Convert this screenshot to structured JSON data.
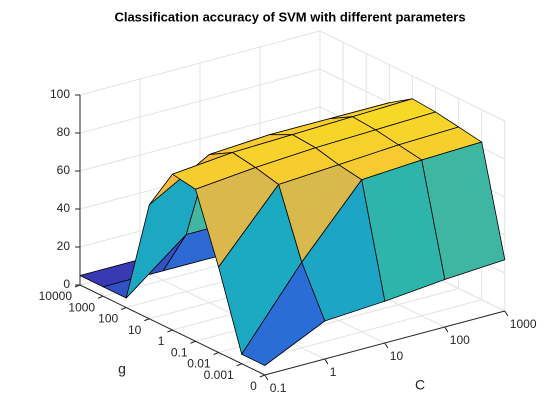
{
  "chart_data": {
    "type": "surface",
    "title": "Classification accuracy of SVM with different parameters",
    "xlabel": "C",
    "ylabel": "g",
    "xcategories": [
      "0.1",
      "1",
      "10",
      "100",
      "1000"
    ],
    "ycategories": [
      "0",
      "0.001",
      "0.01",
      "0.1",
      "1",
      "10",
      "100",
      "1000",
      "10000"
    ],
    "z": [
      [
        5,
        20,
        22,
        25,
        27
      ],
      [
        5,
        45,
        80,
        82,
        83
      ],
      [
        45,
        80,
        82,
        84,
        85
      ],
      [
        80,
        83,
        85,
        86,
        87
      ],
      [
        82,
        85,
        86,
        87,
        88
      ],
      [
        60,
        78,
        80,
        80,
        80
      ],
      [
        5,
        30,
        30,
        30,
        30
      ],
      [
        5,
        5,
        5,
        5,
        5
      ],
      [
        5,
        5,
        5,
        5,
        5
      ]
    ],
    "zlim": [
      0,
      100
    ],
    "zticks": [
      0,
      20,
      40,
      60,
      80,
      100
    ],
    "grid": true,
    "colormap": [
      "#3e26a8",
      "#2485e6",
      "#19b5b6",
      "#f6b83c",
      "#f9fb0e"
    ]
  }
}
